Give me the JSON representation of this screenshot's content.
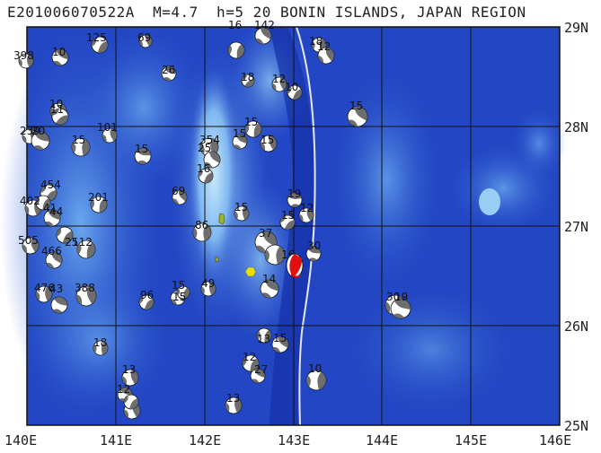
{
  "title": "E201006070522A  M=4.7  h=5 20 BONIN ISLANDS, JAPAN REGION",
  "longitude_labels": [
    "140E",
    "141E",
    "142E",
    "143E",
    "144E",
    "145E",
    "146E"
  ],
  "latitude_labels": [
    "29N",
    "28N",
    "27N",
    "26N",
    "25N"
  ],
  "event_labels": [
    "398",
    "10",
    "125",
    "69",
    "16",
    "142",
    "18",
    "12",
    "26",
    "18",
    "12",
    "10",
    "15",
    "10",
    "11",
    "101",
    "15",
    "354",
    "15",
    "15",
    "15",
    "25",
    "16",
    "239",
    "20",
    "15",
    "454",
    "69",
    "201",
    "15",
    "19",
    "12",
    "402",
    "41",
    "44",
    "86",
    "15",
    "37",
    "505",
    "25",
    "466",
    "112",
    "16",
    "30",
    "476",
    "43",
    "388",
    "96",
    "15",
    "15",
    "49",
    "14",
    "13",
    "30",
    "19",
    "18",
    "15",
    "12",
    "13",
    "27",
    "10",
    "13",
    "12"
  ],
  "colors": {
    "ocean_deep": "#1a39b8",
    "ocean_shallow": "#bfe4fb",
    "trench": "#e6e6e6",
    "target_event": "#e01010",
    "island": "#e8e000",
    "grid": "#111111"
  }
}
